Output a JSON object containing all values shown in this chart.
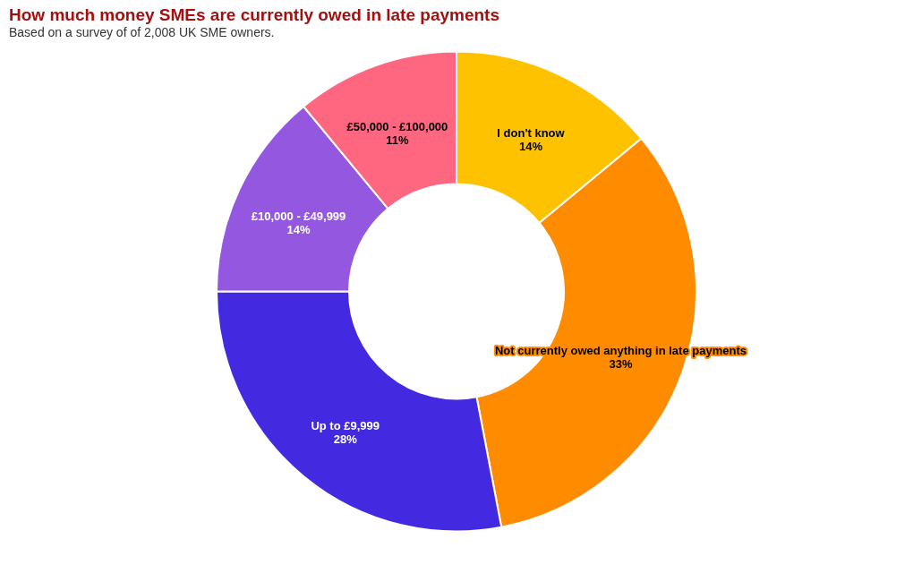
{
  "chart_data": {
    "type": "donut",
    "title": "How much money SMEs are currently owed in late payments",
    "subtitle": "Based on a survey of of 2,008 UK SME owners.",
    "categories": [
      "I don't know",
      "Not currently owed anything in late payments",
      "Up to £9,999",
      "£10,000 - £49,999",
      "£50,000 - £100,000"
    ],
    "values": [
      14,
      33,
      28,
      14,
      11
    ],
    "value_labels": [
      "14%",
      "33%",
      "28%",
      "14%",
      "11%"
    ],
    "colors": [
      "#ffc200",
      "#ff8c00",
      "#4329e0",
      "#9458e0",
      "#ff6680"
    ]
  }
}
